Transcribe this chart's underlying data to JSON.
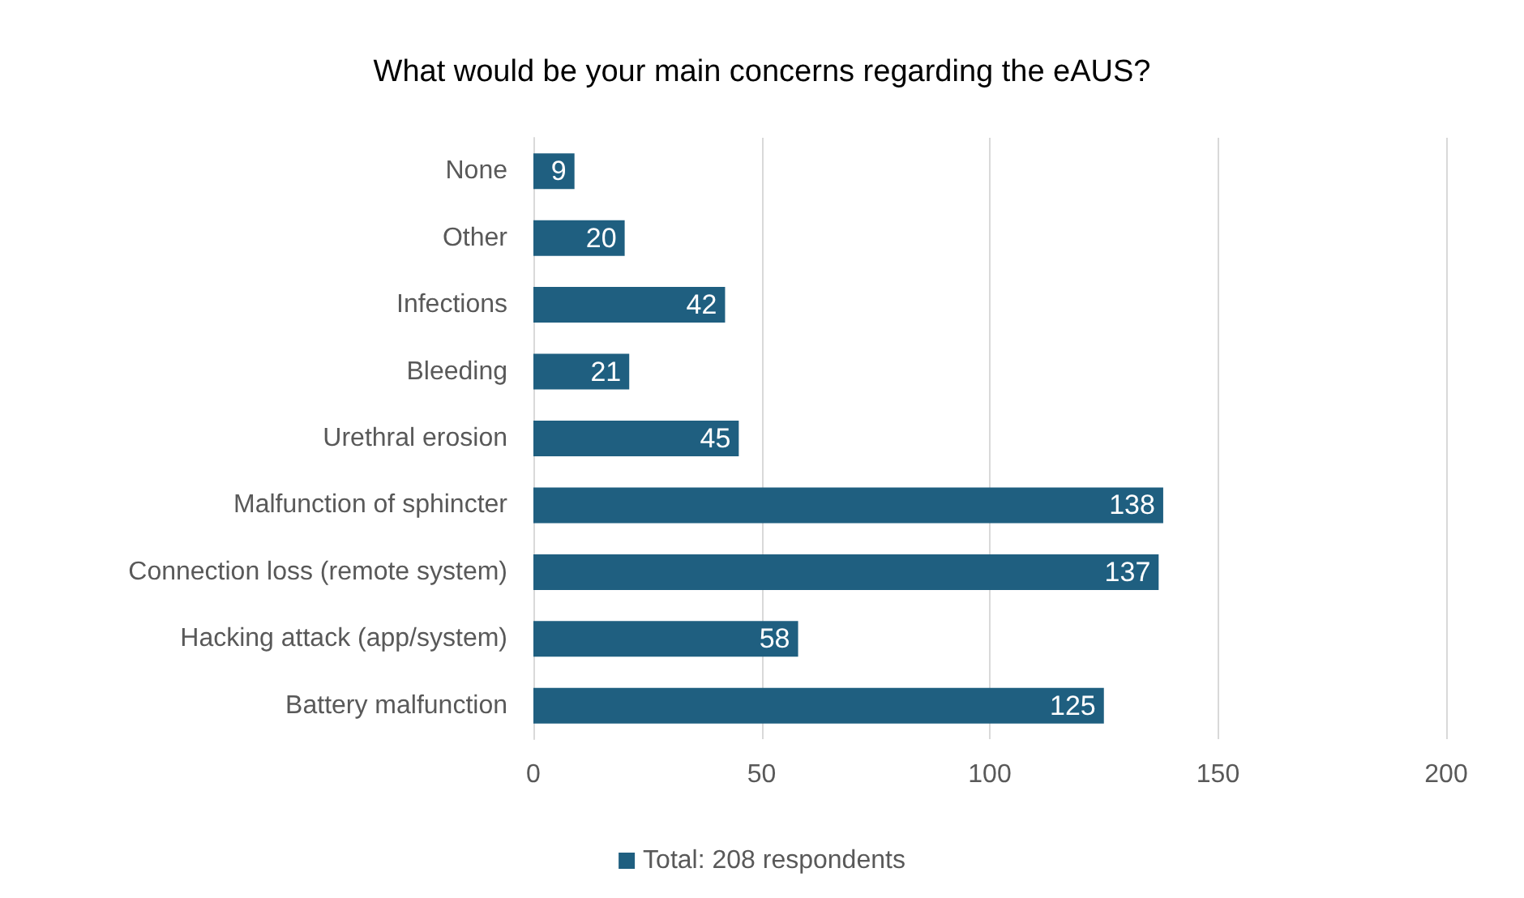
{
  "chart_data": {
    "type": "bar",
    "orientation": "horizontal",
    "title": "What would be your main concerns regarding the eAUS?",
    "categories": [
      "None",
      "Other",
      "Infections",
      "Bleeding",
      "Urethral erosion",
      "Malfunction of sphincter",
      "Connection loss (remote system)",
      "Hacking attack (app/system)",
      "Battery malfunction"
    ],
    "series": [
      {
        "name": "Total: 208 respondents",
        "color": "#1f5f80",
        "values": [
          9,
          20,
          42,
          21,
          45,
          138,
          137,
          58,
          125
        ]
      }
    ],
    "xlim": [
      0,
      200
    ],
    "xticks": [
      0,
      50,
      100,
      150,
      200
    ],
    "grid": "x",
    "legend": "bottom",
    "data_labels": true
  }
}
